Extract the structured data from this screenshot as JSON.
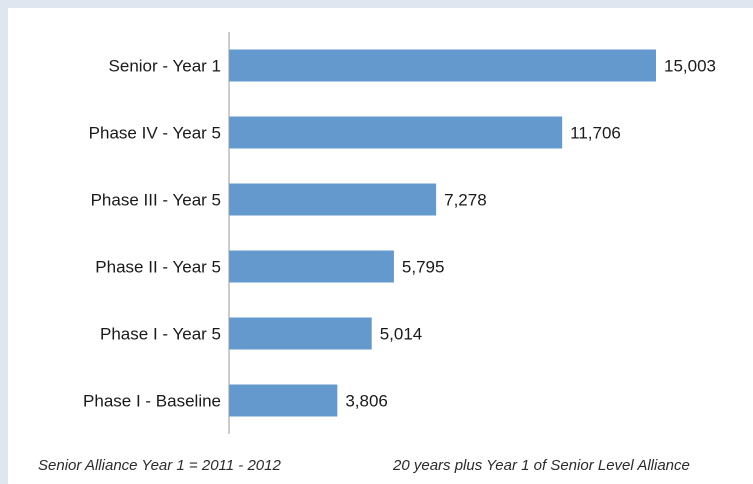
{
  "chart_data": {
    "type": "bar",
    "orientation": "horizontal",
    "categories": [
      "Senior - Year 1",
      "Phase IV - Year 5",
      "Phase III - Year 5",
      "Phase II - Year 5",
      "Phase I - Year 5",
      "Phase I - Baseline"
    ],
    "values": [
      15003,
      11706,
      7278,
      5795,
      5014,
      3806
    ],
    "value_labels": [
      "15,003",
      "11,706",
      "7,278",
      "5,795",
      "5,014",
      "3,806"
    ],
    "xlim": [
      0,
      16800
    ],
    "grid": false,
    "legend": "none",
    "bar_color": "#6399cd"
  },
  "footnotes": {
    "left": "Senior Alliance Year 1 = 2011 - 2012",
    "right": "20 years plus Year 1 of Senior Level Alliance"
  }
}
